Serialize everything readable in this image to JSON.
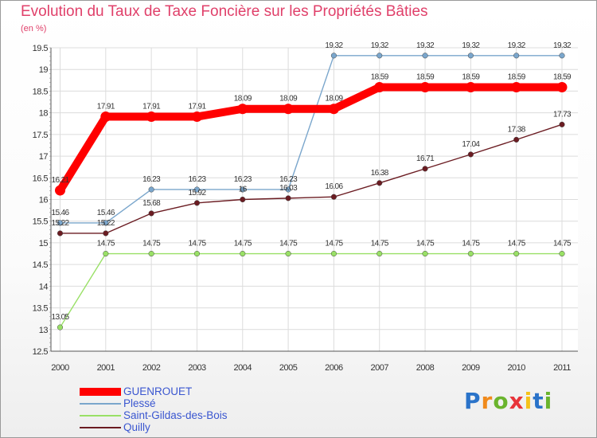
{
  "chart_data": {
    "type": "line",
    "title": "Evolution du Taux de Taxe Foncière sur les Propriétés Bâties",
    "subtitle": "(en %)",
    "x": [
      2000,
      2001,
      2002,
      2003,
      2004,
      2005,
      2006,
      2007,
      2008,
      2009,
      2010,
      2011
    ],
    "ylim": [
      12.5,
      19.5
    ],
    "yticks": [
      "12.5",
      "13",
      "13.5",
      "14",
      "14.5",
      "15",
      "15.5",
      "16",
      "16.5",
      "17",
      "17.5",
      "18",
      "18.5",
      "19",
      "19.5"
    ],
    "grid": true,
    "series": [
      {
        "name": "GUENROUET",
        "color": "#ff0000",
        "values": [
          16.21,
          17.91,
          17.91,
          17.91,
          18.09,
          18.09,
          18.09,
          18.59,
          18.59,
          18.59,
          18.59,
          18.59
        ],
        "labels": [
          "16.21",
          "17.91",
          "17.91",
          "17.91",
          "18.09",
          "18.09",
          "18.09",
          "18.59",
          "18.59",
          "18.59",
          "18.59",
          "18.59"
        ]
      },
      {
        "name": "Plessé",
        "color": "#7aa6cc",
        "values": [
          15.46,
          15.46,
          16.23,
          16.23,
          16.23,
          16.23,
          19.32,
          19.32,
          19.32,
          19.32,
          19.32,
          19.32
        ],
        "labels": [
          "15.46",
          "15.46",
          "16.23",
          "16.23",
          "16.23",
          "16.23",
          "19.32",
          "19.32",
          "19.32",
          "19.32",
          "19.32",
          "19.32"
        ]
      },
      {
        "name": "Saint-Gildas-des-Bois",
        "color": "#99e066",
        "values": [
          13.05,
          14.75,
          14.75,
          14.75,
          14.75,
          14.75,
          14.75,
          14.75,
          14.75,
          14.75,
          14.75,
          14.75
        ],
        "labels": [
          "13.05",
          "14.75",
          "14.75",
          "14.75",
          "14.75",
          "14.75",
          "14.75",
          "14.75",
          "14.75",
          "14.75",
          "14.75",
          "14.75"
        ]
      },
      {
        "name": "Quilly",
        "color": "#6b1c22",
        "values": [
          15.22,
          15.22,
          15.68,
          15.92,
          16.0,
          16.03,
          16.06,
          16.38,
          16.71,
          17.04,
          17.38,
          17.73
        ],
        "labels": [
          "15.22",
          "15.22",
          "15.68",
          "15.92",
          "16",
          "16.03",
          "16.06",
          "16.38",
          "16.71",
          "17.04",
          "17.38",
          "17.73"
        ]
      }
    ]
  },
  "logo": {
    "letters": [
      "P",
      "r",
      "o",
      "x",
      "i",
      "t",
      "i"
    ],
    "colors": [
      "#2a73c9",
      "#f08a1c",
      "#6ab42d",
      "#e8343a",
      "#f5c21a",
      "#2a73c9",
      "#6ab42d"
    ]
  }
}
